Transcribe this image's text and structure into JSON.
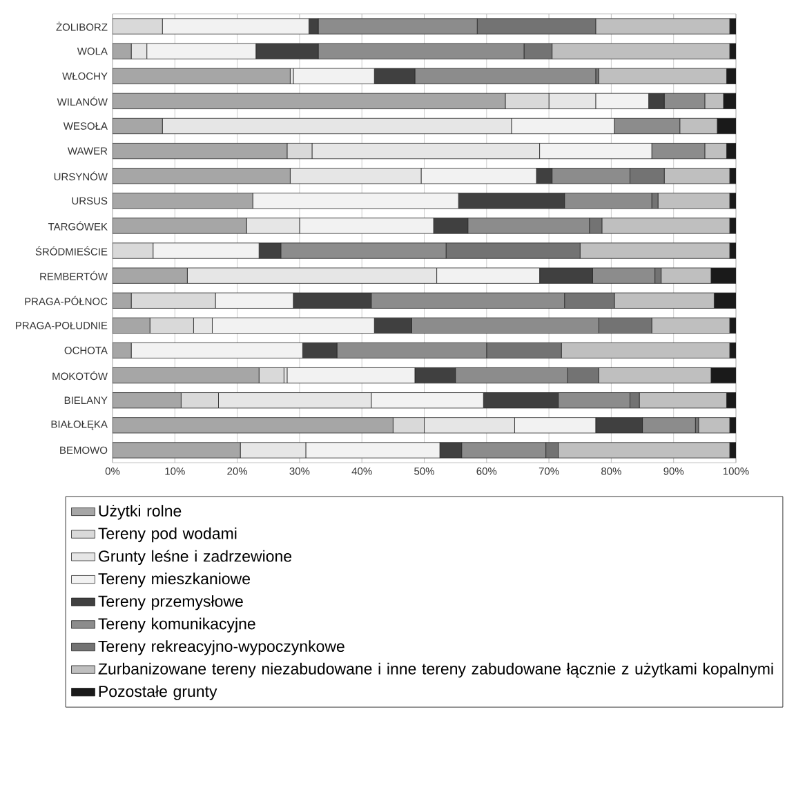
{
  "chart_data": {
    "type": "bar",
    "orientation": "horizontal",
    "stacked": true,
    "grid": "x",
    "legend": "bottom",
    "categories": [
      "ŻOLIBORZ",
      "WOLA",
      "WŁOCHY",
      "WILANÓW",
      "WESOŁA",
      "WAWER",
      "URSYNÓW",
      "URSUS",
      "TARGÓWEK",
      "ŚRÓDMIEŚCIE",
      "REMBERTÓW",
      "PRAGA-PÓŁNOC",
      "PRAGA-POŁUDNIE",
      "OCHOTA",
      "MOKOTÓW",
      "BIELANY",
      "BIAŁOŁĘKA",
      "BEMOWO"
    ],
    "xlim": [
      0,
      100
    ],
    "xticks": [
      {
        "value": 0,
        "label": "0%"
      },
      {
        "value": 10,
        "label": "10%"
      },
      {
        "value": 20,
        "label": "20%"
      },
      {
        "value": 30,
        "label": "30%"
      },
      {
        "value": 40,
        "label": "40%"
      },
      {
        "value": 50,
        "label": "50%"
      },
      {
        "value": 60,
        "label": "60%"
      },
      {
        "value": 70,
        "label": "70%"
      },
      {
        "value": 80,
        "label": "80%"
      },
      {
        "value": 90,
        "label": "90%"
      },
      {
        "value": 100,
        "label": "100%"
      }
    ],
    "series": [
      {
        "name": "Użytki rolne",
        "color": "#a6a6a6",
        "values": [
          0,
          3,
          28.5,
          63,
          8,
          28,
          28.5,
          22.5,
          21.5,
          0,
          12,
          3,
          6,
          3,
          23.5,
          11,
          45,
          20.5
        ]
      },
      {
        "name": "Tereny pod wodami",
        "color": "#d9d9d9",
        "values": [
          8,
          0,
          0,
          7,
          0,
          4,
          0,
          0,
          0,
          6.5,
          0,
          13.5,
          7,
          0,
          4,
          6,
          5,
          0
        ]
      },
      {
        "name": "Grunty leśne i zadrzewione",
        "color": "#e6e6e6",
        "values": [
          0,
          2.5,
          0.5,
          7.5,
          56,
          36.5,
          21,
          0,
          8.5,
          0,
          40,
          0,
          3,
          0,
          0.5,
          24.5,
          14.5,
          10.5
        ]
      },
      {
        "name": "Tereny mieszkaniowe",
        "color": "#f2f2f2",
        "values": [
          23.5,
          17.5,
          13,
          8.5,
          16.5,
          18,
          18.5,
          33,
          21.5,
          17,
          16.5,
          12.5,
          26,
          27.5,
          20.5,
          18,
          13,
          21.5
        ]
      },
      {
        "name": "Tereny przemysłowe",
        "color": "#404040",
        "values": [
          1.5,
          10,
          6.5,
          2.5,
          0,
          0,
          2.5,
          17,
          5.5,
          3.5,
          8.5,
          12.5,
          6,
          5.5,
          6.5,
          12,
          7.5,
          3.5
        ]
      },
      {
        "name": "Tereny komunikacyjne",
        "color": "#8c8c8c",
        "values": [
          25.5,
          33,
          29,
          6.5,
          10.5,
          8.5,
          12.5,
          14,
          19.5,
          26.5,
          10,
          31,
          30,
          24,
          18,
          11.5,
          8.5,
          13.5
        ]
      },
      {
        "name": "Tereny rekreacyjno-wypoczynkowe",
        "color": "#737373",
        "values": [
          19,
          4.5,
          0.5,
          0,
          0,
          0,
          5.5,
          1,
          2,
          21.5,
          1,
          8,
          8.5,
          12,
          5,
          1.5,
          0.5,
          2
        ]
      },
      {
        "name": "Zurbanizowane tereny niezabudowane i inne tereny zabudowane łącznie z użytkami kopalnymi",
        "color": "#bfbfbf",
        "values": [
          21.5,
          28.5,
          20.5,
          3,
          6,
          3.5,
          10.5,
          11.5,
          20.5,
          24,
          8,
          16,
          12.5,
          27,
          18,
          14,
          5,
          27.5
        ]
      },
      {
        "name": "Pozostałe grunty",
        "color": "#1a1a1a",
        "values": [
          1,
          1,
          1.5,
          2,
          3,
          1.5,
          1,
          1,
          1,
          1,
          4,
          3.5,
          1,
          1,
          4,
          1.5,
          1,
          1
        ]
      }
    ]
  }
}
